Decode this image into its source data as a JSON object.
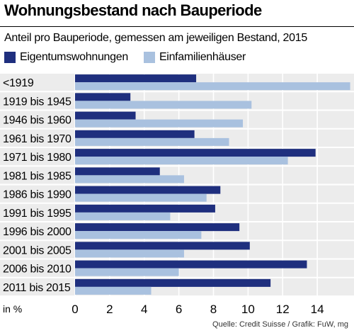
{
  "header": {
    "title": "Wohnungsbestand nach Bauperiode",
    "subtitle": "Anteil pro Bauperiode, gemessen am jeweiligen Bestand, 2015"
  },
  "source": "Quelle: Credit Suisse / Grafik: FuW, mg",
  "chart_data": {
    "type": "bar",
    "orientation": "horizontal",
    "unit_label": "in %",
    "categories": [
      "<1919",
      "1919 bis 1945",
      "1946 bis 1960",
      "1961 bis 1970",
      "1971 bis 1980",
      "1981 bis 1985",
      "1986 bis 1990",
      "1991 bis 1995",
      "1996 bis 2000",
      "2001 bis 2005",
      "2006 bis 2010",
      "2011 bis 2015"
    ],
    "series": [
      {
        "name": "Eigentumswohnungen",
        "color": "#1f2f7e",
        "values": [
          7.0,
          3.2,
          3.5,
          6.9,
          13.9,
          4.9,
          8.4,
          8.1,
          9.5,
          10.1,
          13.4,
          11.3
        ]
      },
      {
        "name": "Einfamilienhäuser",
        "color": "#a9c1df",
        "values": [
          15.9,
          10.2,
          9.7,
          8.9,
          12.3,
          6.3,
          7.6,
          5.5,
          7.3,
          6.3,
          6.0,
          4.4
        ]
      }
    ],
    "xlim": [
      0,
      16
    ],
    "xticks": [
      "0",
      "2",
      "4",
      "6",
      "8",
      "10",
      "12",
      "14"
    ],
    "grid": true,
    "legend_position": "top-left"
  }
}
